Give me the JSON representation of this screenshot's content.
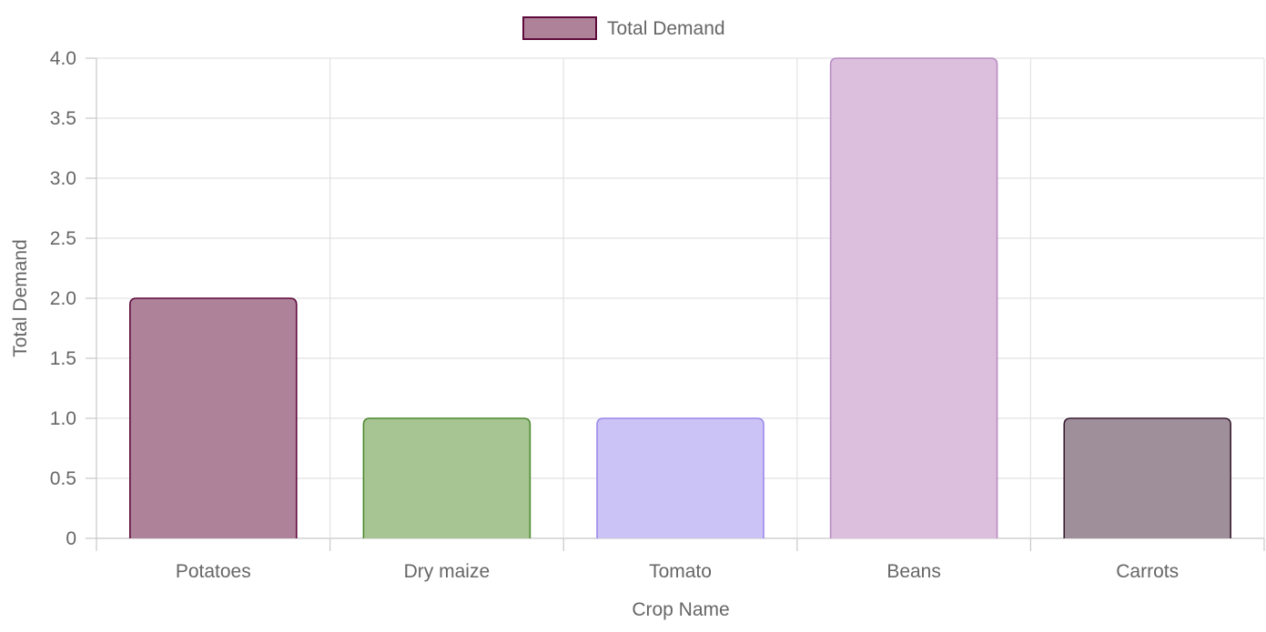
{
  "chart_data": {
    "type": "bar",
    "title": "",
    "categories": [
      "Potatoes",
      "Dry maize",
      "Tomato",
      "Beans",
      "Carrots"
    ],
    "series": [
      {
        "name": "Total Demand",
        "values": [
          2,
          1,
          1,
          4,
          1
        ]
      }
    ],
    "bar_colors": [
      {
        "fill": "#ae8299",
        "stroke": "#5e0b3b"
      },
      {
        "fill": "#a7c493",
        "stroke": "#4d8a31"
      },
      {
        "fill": "#cbc2f6",
        "stroke": "#9c88ea"
      },
      {
        "fill": "#dbbfdd",
        "stroke": "#b88cc2"
      },
      {
        "fill": "#9e8f9b",
        "stroke": "#3b1d33"
      }
    ],
    "legend": {
      "label": "Total Demand",
      "fill": "#ae8299",
      "stroke": "#5e0b3b",
      "position": "top"
    },
    "xlabel": "Crop Name",
    "ylabel": "Total Demand",
    "ylim": [
      0,
      4
    ],
    "y_ticks": [
      "0",
      "0.5",
      "1.0",
      "1.5",
      "2.0",
      "2.5",
      "3.0",
      "3.5",
      "4.0"
    ],
    "y_tick_values": [
      0,
      0.5,
      1,
      1.5,
      2,
      2.5,
      3,
      3.5,
      4
    ],
    "grid": true
  }
}
